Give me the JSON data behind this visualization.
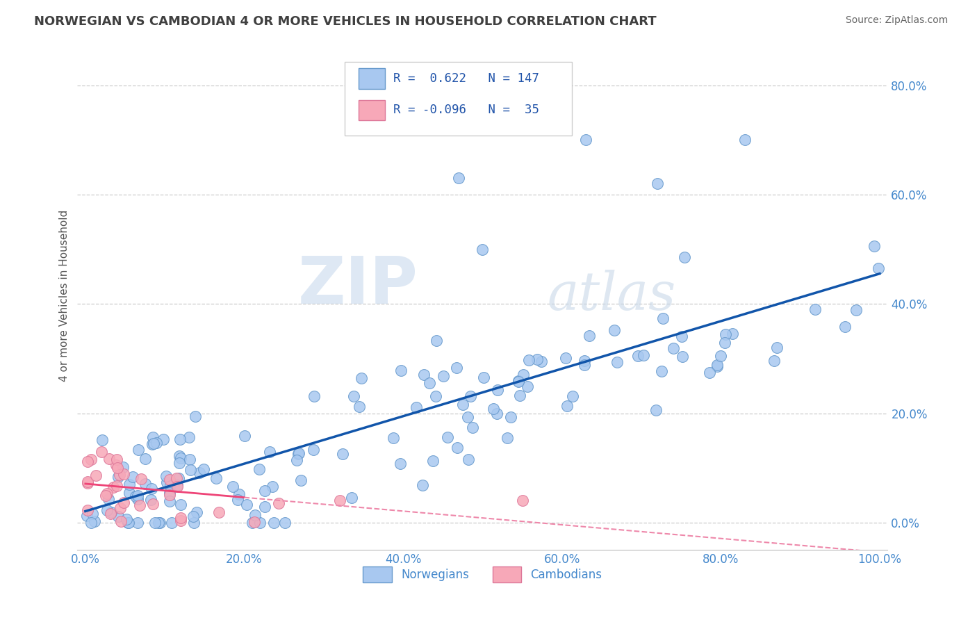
{
  "title": "NORWEGIAN VS CAMBODIAN 4 OR MORE VEHICLES IN HOUSEHOLD CORRELATION CHART",
  "source": "Source: ZipAtlas.com",
  "ylabel": "4 or more Vehicles in Household",
  "xlim": [
    -0.01,
    1.01
  ],
  "ylim": [
    -0.05,
    0.88
  ],
  "xticks": [
    0.0,
    0.2,
    0.4,
    0.6,
    0.8,
    1.0
  ],
  "yticks": [
    0.0,
    0.2,
    0.4,
    0.6,
    0.8
  ],
  "xtick_labels": [
    "0.0%",
    "20.0%",
    "40.0%",
    "60.0%",
    "80.0%",
    "100.0%"
  ],
  "ytick_labels": [
    "0.0%",
    "20.0%",
    "40.0%",
    "60.0%",
    "80.0%"
  ],
  "norwegian_color": "#A8C8F0",
  "cambodian_color": "#F7A8B8",
  "norwegian_edge": "#6699CC",
  "cambodian_edge": "#DD7799",
  "trend_norwegian_color": "#1155AA",
  "trend_cambodian_solid_color": "#EE4477",
  "trend_cambodian_dash_color": "#EE88AA",
  "R_norwegian": 0.622,
  "N_norwegian": 147,
  "R_cambodian": -0.096,
  "N_cambodian": 35,
  "watermark_zip": "ZIP",
  "watermark_atlas": "atlas",
  "legend_labels": [
    "Norwegians",
    "Cambodians"
  ],
  "background_color": "#ffffff",
  "grid_color": "#cccccc",
  "title_color": "#404040",
  "axis_label_color": "#555555",
  "tick_color": "#4488CC",
  "legend_text_color": "#2255AA"
}
